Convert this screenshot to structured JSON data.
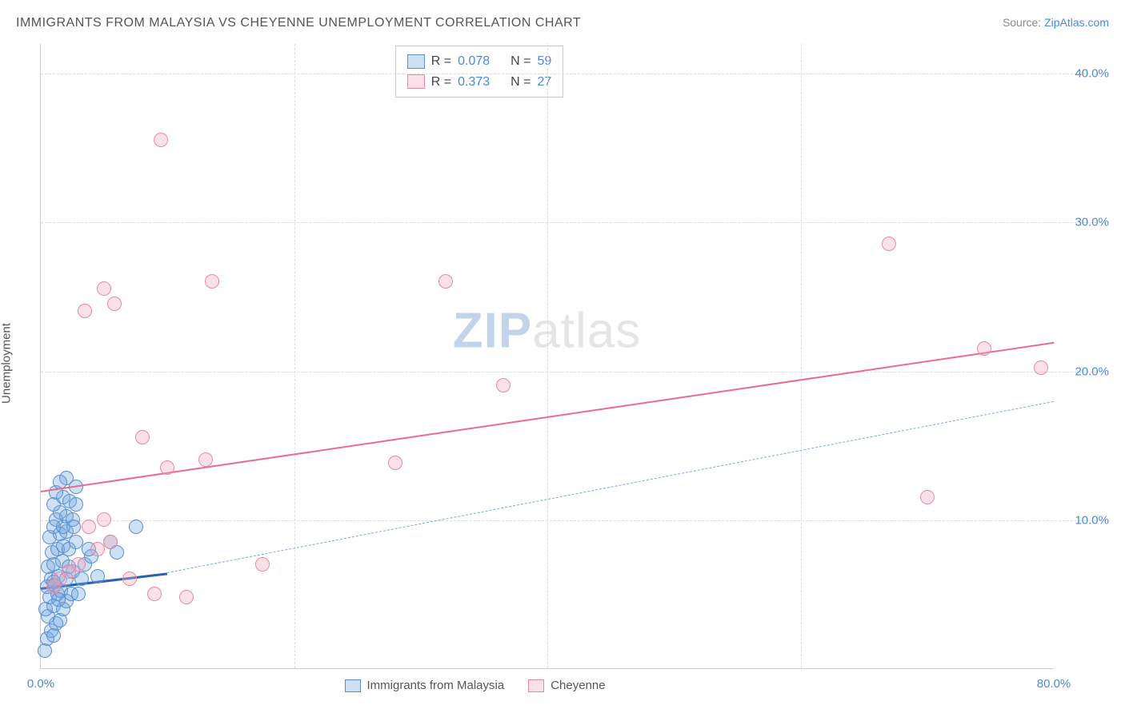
{
  "title": "IMMIGRANTS FROM MALAYSIA VS CHEYENNE UNEMPLOYMENT CORRELATION CHART",
  "source_label": "Source:",
  "source_name": "ZipAtlas.com",
  "y_axis_label": "Unemployment",
  "watermark_zip": "ZIP",
  "watermark_atlas": "atlas",
  "chart": {
    "type": "scatter",
    "background_color": "#ffffff",
    "grid_color": "#dddddd",
    "xlim": [
      0,
      80
    ],
    "ylim": [
      0,
      42
    ],
    "x_ticks": [
      {
        "pos": 0,
        "label": "0.0%"
      },
      {
        "pos": 80,
        "label": "80.0%"
      }
    ],
    "x_grid_at": [
      20,
      40,
      60
    ],
    "y_ticks": [
      {
        "pos": 10,
        "label": "10.0%"
      },
      {
        "pos": 20,
        "label": "20.0%"
      },
      {
        "pos": 30,
        "label": "30.0%"
      },
      {
        "pos": 40,
        "label": "40.0%"
      }
    ],
    "tick_color": "#4a8ad8",
    "tick_fontsize": 15,
    "label_fontsize": 15,
    "title_fontsize": 16,
    "marker_radius": 9,
    "marker_border_width": 1.5,
    "series": [
      {
        "name": "Immigrants from Malaysia",
        "fill_color": "rgba(114,166,220,0.35)",
        "border_color": "#5a8fd0",
        "r_value": "0.078",
        "n_value": "59",
        "trend": {
          "x1": 0,
          "y1": 5.5,
          "x2": 10,
          "y2": 6.5,
          "color": "#2b5fb0",
          "width": 3,
          "dash": "solid",
          "extend_x2": 80,
          "extend_y2": 18,
          "extend_dash": "6,5",
          "extend_color": "#7aa8db",
          "extend_width": 1.5
        },
        "points": [
          [
            0.3,
            1.2
          ],
          [
            0.5,
            2.0
          ],
          [
            0.8,
            2.5
          ],
          [
            1.0,
            2.2
          ],
          [
            1.2,
            3.0
          ],
          [
            0.6,
            3.5
          ],
          [
            1.5,
            3.2
          ],
          [
            0.4,
            4.0
          ],
          [
            1.0,
            4.2
          ],
          [
            1.8,
            4.0
          ],
          [
            0.7,
            4.8
          ],
          [
            1.3,
            5.0
          ],
          [
            2.0,
            4.5
          ],
          [
            0.5,
            5.5
          ],
          [
            1.1,
            5.6
          ],
          [
            1.6,
            5.2
          ],
          [
            2.4,
            5.0
          ],
          [
            0.8,
            6.0
          ],
          [
            1.4,
            6.2
          ],
          [
            2.0,
            6.0
          ],
          [
            0.6,
            6.8
          ],
          [
            1.0,
            7.0
          ],
          [
            1.7,
            7.2
          ],
          [
            2.5,
            6.5
          ],
          [
            3.2,
            6.0
          ],
          [
            0.9,
            7.8
          ],
          [
            1.3,
            8.0
          ],
          [
            1.8,
            8.2
          ],
          [
            2.2,
            8.0
          ],
          [
            0.7,
            8.8
          ],
          [
            1.5,
            9.0
          ],
          [
            2.0,
            9.2
          ],
          [
            2.8,
            8.5
          ],
          [
            1.0,
            9.5
          ],
          [
            1.8,
            9.5
          ],
          [
            1.2,
            10.0
          ],
          [
            2.0,
            10.2
          ],
          [
            2.5,
            10.0
          ],
          [
            1.5,
            10.5
          ],
          [
            1.0,
            11.0
          ],
          [
            1.8,
            11.5
          ],
          [
            2.3,
            11.2
          ],
          [
            2.8,
            11.0
          ],
          [
            1.2,
            11.8
          ],
          [
            2.0,
            12.8
          ],
          [
            1.5,
            12.5
          ],
          [
            2.8,
            12.2
          ],
          [
            1.0,
            5.8
          ],
          [
            1.4,
            4.6
          ],
          [
            2.2,
            6.8
          ],
          [
            3.5,
            7.0
          ],
          [
            4.0,
            7.5
          ],
          [
            5.5,
            8.5
          ],
          [
            6.0,
            7.8
          ],
          [
            4.5,
            6.2
          ],
          [
            3.0,
            5.0
          ],
          [
            2.6,
            9.5
          ],
          [
            3.8,
            8.0
          ],
          [
            7.5,
            9.5
          ]
        ]
      },
      {
        "name": "Cheyenne",
        "fill_color": "rgba(242,170,190,0.35)",
        "border_color": "#e68aa5",
        "r_value": "0.373",
        "n_value": "27",
        "trend": {
          "x1": 0,
          "y1": 12.0,
          "x2": 80,
          "y2": 22.0,
          "color": "#e86b94",
          "width": 2.5,
          "dash": "solid"
        },
        "points": [
          [
            1.0,
            5.5
          ],
          [
            1.5,
            6.0
          ],
          [
            2.2,
            6.5
          ],
          [
            3.0,
            7.0
          ],
          [
            4.5,
            8.0
          ],
          [
            5.5,
            8.5
          ],
          [
            3.8,
            9.5
          ],
          [
            5.0,
            10.0
          ],
          [
            7.0,
            6.0
          ],
          [
            9.0,
            5.0
          ],
          [
            10.0,
            13.5
          ],
          [
            11.5,
            4.8
          ],
          [
            13.0,
            14.0
          ],
          [
            17.5,
            7.0
          ],
          [
            8.0,
            15.5
          ],
          [
            3.5,
            24.0
          ],
          [
            5.0,
            25.5
          ],
          [
            5.8,
            24.5
          ],
          [
            13.5,
            26.0
          ],
          [
            9.5,
            35.5
          ],
          [
            28.0,
            13.8
          ],
          [
            32.0,
            26.0
          ],
          [
            36.5,
            19.0
          ],
          [
            67.0,
            28.5
          ],
          [
            70.0,
            11.5
          ],
          [
            74.5,
            21.5
          ],
          [
            79.0,
            20.2
          ]
        ]
      }
    ]
  },
  "legend_top": {
    "r_label": "R =",
    "n_label": "N ="
  }
}
